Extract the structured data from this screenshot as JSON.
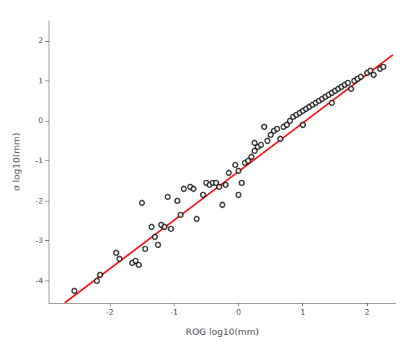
{
  "chart_data": {
    "type": "scatter",
    "xlabel": "ROG log10(mm)",
    "ylabel": "σ log10(mm)",
    "x": [
      -2.55,
      -2.2,
      -2.15,
      -1.9,
      -1.85,
      -1.65,
      -1.6,
      -1.55,
      -1.5,
      -1.45,
      -1.35,
      -1.3,
      -1.25,
      -1.2,
      -1.15,
      -1.1,
      -1.05,
      -0.95,
      -0.9,
      -0.85,
      -0.75,
      -0.7,
      -0.65,
      -0.55,
      -0.5,
      -0.45,
      -0.4,
      -0.35,
      -0.3,
      -0.25,
      -0.2,
      -0.15,
      -0.05,
      0.0,
      0.0,
      0.05,
      0.1,
      0.15,
      0.2,
      0.25,
      0.25,
      0.3,
      0.35,
      0.4,
      0.45,
      0.5,
      0.55,
      0.6,
      0.65,
      0.7,
      0.75,
      0.8,
      0.85,
      0.9,
      0.95,
      1.0,
      1.0,
      1.05,
      1.1,
      1.15,
      1.2,
      1.25,
      1.3,
      1.35,
      1.4,
      1.45,
      1.45,
      1.5,
      1.55,
      1.6,
      1.65,
      1.7,
      1.75,
      1.8,
      1.85,
      1.9,
      2.0,
      2.05,
      2.1,
      2.2,
      2.25
    ],
    "y": [
      -4.25,
      -4.0,
      -3.85,
      -3.3,
      -3.45,
      -3.55,
      -3.5,
      -3.6,
      -2.05,
      -3.2,
      -2.65,
      -2.9,
      -3.1,
      -2.6,
      -2.65,
      -1.9,
      -2.7,
      -2.0,
      -2.35,
      -1.7,
      -1.65,
      -1.7,
      -2.45,
      -1.85,
      -1.55,
      -1.6,
      -1.55,
      -1.55,
      -1.65,
      -2.1,
      -1.6,
      -1.3,
      -1.1,
      -1.85,
      -1.25,
      -1.55,
      -1.05,
      -1.0,
      -0.9,
      -0.75,
      -0.55,
      -0.65,
      -0.6,
      -0.15,
      -0.5,
      -0.35,
      -0.25,
      -0.2,
      -0.45,
      -0.15,
      -0.1,
      0.0,
      0.1,
      0.15,
      0.2,
      0.25,
      -0.1,
      0.3,
      0.35,
      0.4,
      0.45,
      0.5,
      0.55,
      0.6,
      0.65,
      0.7,
      0.45,
      0.75,
      0.8,
      0.85,
      0.9,
      0.95,
      0.8,
      1.0,
      1.05,
      1.1,
      1.2,
      1.25,
      1.15,
      1.3,
      1.35
    ],
    "color": "black",
    "marker": "open_circle",
    "series": [
      {
        "type": "line",
        "x": [
          -2.7,
          2.4
        ],
        "values": [
          -4.55,
          1.65
        ],
        "color": "red"
      }
    ],
    "xlim": [
      -2.95,
      2.45
    ],
    "ylim": [
      -4.55,
      2.5
    ],
    "xticks": [
      -2,
      -1,
      0,
      1,
      2
    ],
    "yticks": [
      -4,
      -3,
      -2,
      -1,
      0,
      1,
      2
    ],
    "grid": false
  }
}
